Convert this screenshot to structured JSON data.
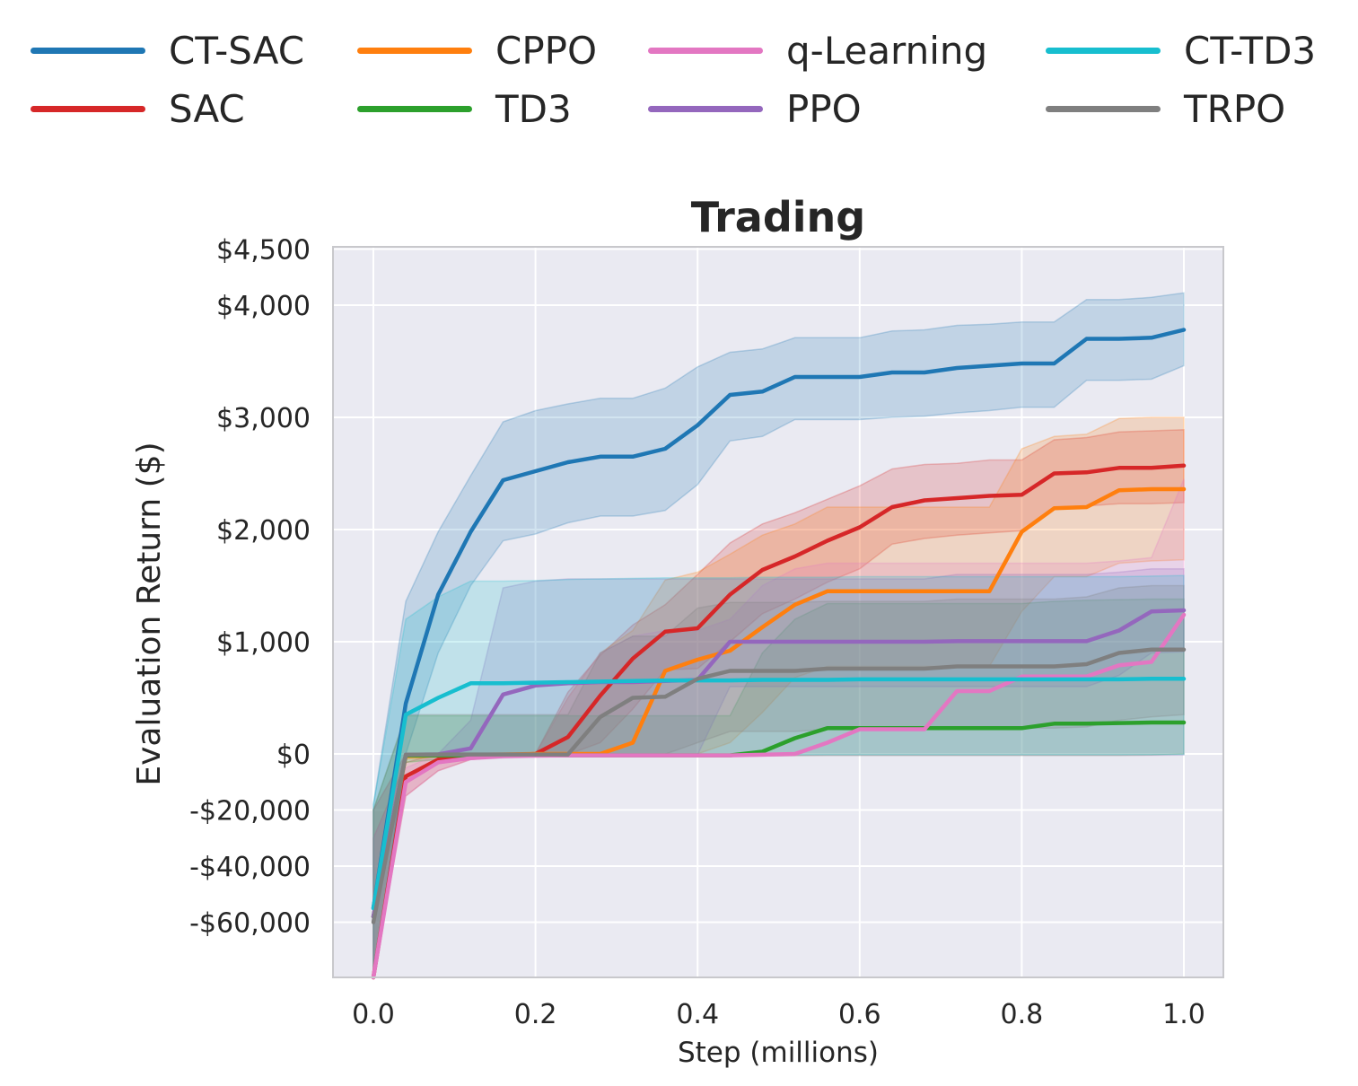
{
  "chart_data": {
    "type": "line",
    "title": "Trading",
    "xlabel": "Step (millions)",
    "ylabel": "Evaluation Return ($)",
    "xlim": [
      -0.05,
      1.05
    ],
    "x_ticks": [
      0.0,
      0.2,
      0.4,
      0.6,
      0.8,
      1.0
    ],
    "x_tick_labels": [
      "0.0",
      "0.2",
      "0.4",
      "0.6",
      "0.8",
      "1.0"
    ],
    "y_scale": "piecewise: linear above $0 (0 to 4,500); compressed below $0 (-80,000 to 0)",
    "y_ticks": [
      4500,
      4000,
      3000,
      2000,
      1000,
      0,
      -20000,
      -40000,
      -60000
    ],
    "y_tick_labels": [
      "$4,500",
      "$4,000",
      "$3,000",
      "$2,000",
      "$1,000",
      "$0",
      "-$20,000",
      "-$40,000",
      "-$60,000"
    ],
    "grid": true,
    "legend_position": "top, outside plot",
    "x": [
      0,
      0.04,
      0.08,
      0.12,
      0.16,
      0.2,
      0.24,
      0.28,
      0.32,
      0.36,
      0.4,
      0.44,
      0.48,
      0.52,
      0.56,
      0.6,
      0.64,
      0.68,
      0.72,
      0.76,
      0.8,
      0.84,
      0.88,
      0.92,
      0.96,
      1.0
    ],
    "series": [
      {
        "name": "CT-SAC",
        "color": "#1f77b4",
        "values": [
          -55000,
          450,
          1420,
          1980,
          2440,
          2520,
          2600,
          2650,
          2650,
          2720,
          2930,
          3200,
          3230,
          3360,
          3360,
          3360,
          3400,
          3400,
          3440,
          3460,
          3480,
          3480,
          3700,
          3700,
          3710,
          3780
        ],
        "upper": [
          -18000,
          1360,
          1980,
          2480,
          2960,
          3060,
          3120,
          3170,
          3170,
          3260,
          3450,
          3580,
          3610,
          3710,
          3710,
          3710,
          3770,
          3780,
          3820,
          3830,
          3850,
          3850,
          4050,
          4050,
          4070,
          4110
        ],
        "lower": [
          -80000,
          0,
          900,
          1500,
          1900,
          1960,
          2060,
          2120,
          2120,
          2170,
          2400,
          2790,
          2830,
          2980,
          2980,
          2980,
          3000,
          3010,
          3040,
          3060,
          3090,
          3090,
          3330,
          3330,
          3340,
          3460
        ]
      },
      {
        "name": "SAC",
        "color": "#d62728",
        "values": [
          -80000,
          -8000,
          -2000,
          -1000,
          -500,
          0,
          150,
          520,
          850,
          1090,
          1120,
          1420,
          1640,
          1760,
          1900,
          2020,
          2200,
          2260,
          2280,
          2300,
          2310,
          2500,
          2510,
          2550,
          2550,
          2570
        ],
        "upper": [
          -30000,
          -3000,
          0,
          0,
          0,
          0,
          550,
          880,
          1150,
          1330,
          1600,
          1880,
          2050,
          2150,
          2270,
          2390,
          2540,
          2580,
          2590,
          2620,
          2620,
          2800,
          2820,
          2870,
          2880,
          2890
        ],
        "lower": [
          -80000,
          -15000,
          -6000,
          -2000,
          -1000,
          -400,
          -200,
          100,
          400,
          750,
          760,
          1000,
          1250,
          1380,
          1530,
          1650,
          1870,
          1920,
          1950,
          1970,
          1990,
          2200,
          2210,
          2230,
          2230,
          2240
        ]
      },
      {
        "name": "CPPO",
        "color": "#ff7f0e",
        "values": [
          -58000,
          -800,
          -500,
          -300,
          -200,
          0,
          0,
          0,
          100,
          740,
          840,
          920,
          1130,
          1330,
          1450,
          1450,
          1450,
          1450,
          1450,
          1450,
          1980,
          2190,
          2200,
          2350,
          2360,
          2360
        ],
        "upper": [
          -20000,
          0,
          0,
          0,
          0,
          0,
          500,
          900,
          1100,
          1550,
          1620,
          1780,
          1950,
          2050,
          2200,
          2200,
          2200,
          2200,
          2200,
          2200,
          2720,
          2830,
          2850,
          2990,
          3000,
          3000
        ],
        "lower": [
          -80000,
          -2000,
          -1000,
          -1000,
          -800,
          -500,
          -300,
          -200,
          -200,
          0,
          0,
          100,
          370,
          680,
          780,
          780,
          780,
          780,
          780,
          780,
          1270,
          1580,
          1580,
          1700,
          1720,
          1730
        ]
      },
      {
        "name": "TD3",
        "color": "#2ca02c",
        "values": [
          -58000,
          -500,
          -500,
          -500,
          -500,
          -500,
          -500,
          -500,
          -500,
          -500,
          -500,
          -500,
          20,
          140,
          230,
          230,
          230,
          230,
          230,
          230,
          230,
          270,
          270,
          275,
          280,
          280
        ],
        "upper": [
          -20000,
          340,
          340,
          340,
          340,
          340,
          340,
          340,
          340,
          340,
          340,
          340,
          900,
          1200,
          1340,
          1340,
          1340,
          1340,
          1340,
          1340,
          1340,
          1360,
          1370,
          1375,
          1380,
          1380
        ],
        "lower": [
          -80000,
          -3000,
          -2000,
          -1000,
          -800,
          -800,
          -800,
          -800,
          -800,
          -800,
          -800,
          -800,
          -700,
          -600,
          -500,
          -500,
          -500,
          -500,
          -500,
          -500,
          -500,
          -500,
          -500,
          -500,
          -400,
          0
        ]
      },
      {
        "name": "q-Learning",
        "color": "#e377c2",
        "values": [
          -80000,
          -10000,
          -3000,
          -1500,
          -800,
          -600,
          -500,
          -500,
          -500,
          -500,
          -500,
          -500,
          -300,
          0,
          100,
          220,
          220,
          220,
          560,
          560,
          690,
          690,
          690,
          790,
          820,
          1240
        ],
        "upper": [
          -30000,
          -5000,
          0,
          0,
          0,
          0,
          500,
          900,
          1050,
          1100,
          1100,
          1200,
          1500,
          1650,
          1700,
          1700,
          1700,
          1700,
          1700,
          1700,
          1700,
          1700,
          1700,
          1720,
          1750,
          2450
        ],
        "lower": [
          -80000,
          -15000,
          -6000,
          -2000,
          -1500,
          -1200,
          -1000,
          -1000,
          -1000,
          -1000,
          -1000,
          -1000,
          -800,
          -600,
          -500,
          -500,
          -500,
          -500,
          -500,
          -500,
          -500,
          -500,
          -500,
          -500,
          -500,
          -400
        ]
      },
      {
        "name": "PPO",
        "color": "#9467bd",
        "values": [
          -58000,
          -300,
          -150,
          50,
          530,
          610,
          630,
          640,
          640,
          650,
          660,
          1000,
          1000,
          1000,
          1000,
          1000,
          1000,
          1000,
          1005,
          1005,
          1005,
          1005,
          1005,
          1100,
          1270,
          1280
        ],
        "upper": [
          -20000,
          0,
          0,
          300,
          1480,
          1540,
          1560,
          1560,
          1560,
          1560,
          1560,
          1560,
          1560,
          1560,
          1560,
          1560,
          1560,
          1560,
          1600,
          1600,
          1600,
          1600,
          1600,
          1620,
          1650,
          1650
        ],
        "lower": [
          -80000,
          -1000,
          -800,
          -600,
          -400,
          -300,
          -300,
          -300,
          -300,
          -300,
          -300,
          600,
          600,
          600,
          600,
          600,
          600,
          600,
          600,
          600,
          600,
          600,
          600,
          700,
          900,
          910
        ]
      },
      {
        "name": "CT-TD3",
        "color": "#17becf",
        "values": [
          -55000,
          350,
          500,
          630,
          630,
          635,
          640,
          645,
          650,
          655,
          655,
          655,
          660,
          660,
          660,
          665,
          665,
          665,
          665,
          665,
          665,
          665,
          665,
          665,
          670,
          670
        ],
        "upper": [
          -18000,
          1200,
          1400,
          1540,
          1540,
          1545,
          1555,
          1560,
          1565,
          1570,
          1570,
          1570,
          1575,
          1575,
          1575,
          1580,
          1580,
          1580,
          1580,
          1580,
          1580,
          1580,
          1580,
          1580,
          1585,
          1590
        ],
        "lower": [
          -80000,
          -500,
          -500,
          -300,
          -300,
          -300,
          -300,
          -300,
          -300,
          -300,
          -300,
          -300,
          -300,
          -300,
          -300,
          -300,
          -300,
          -300,
          -300,
          -300,
          -300,
          -300,
          -300,
          -300,
          -300,
          -300
        ]
      },
      {
        "name": "TRPO",
        "color": "#7f7f7f",
        "values": [
          -60000,
          -300,
          -200,
          -200,
          -200,
          -200,
          -200,
          330,
          500,
          510,
          670,
          740,
          740,
          740,
          760,
          760,
          760,
          760,
          780,
          780,
          780,
          780,
          800,
          900,
          930,
          930
        ],
        "upper": [
          -20000,
          350,
          350,
          350,
          350,
          350,
          350,
          900,
          1050,
          1050,
          1300,
          1350,
          1350,
          1350,
          1360,
          1360,
          1360,
          1360,
          1380,
          1380,
          1380,
          1380,
          1400,
          1480,
          1500,
          1500
        ],
        "lower": [
          -80000,
          -1000,
          -800,
          -800,
          -800,
          -800,
          -800,
          -200,
          -100,
          -100,
          100,
          200,
          200,
          200,
          220,
          220,
          220,
          220,
          230,
          230,
          230,
          230,
          240,
          300,
          330,
          350
        ]
      }
    ]
  }
}
